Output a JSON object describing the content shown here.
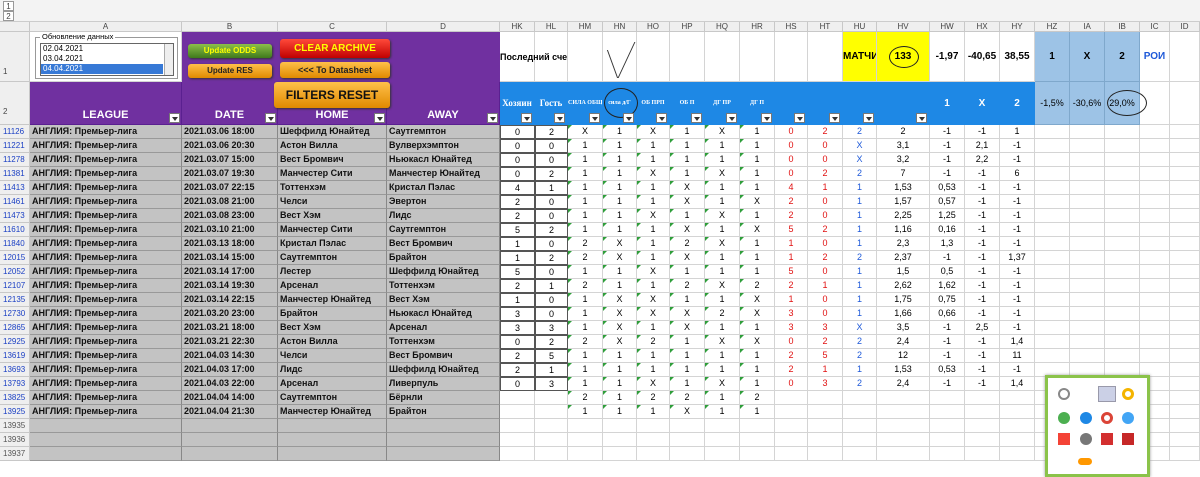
{
  "outline_levels": [
    "1",
    "2"
  ],
  "columns": [
    "A",
    "B",
    "C",
    "D",
    "HK",
    "HL",
    "HM",
    "HN",
    "HO",
    "HP",
    "HQ",
    "HR",
    "HS",
    "HT",
    "HU",
    "HV",
    "HW",
    "HX",
    "HY",
    "HZ",
    "IA",
    "IB",
    "IC",
    "ID"
  ],
  "controls": {
    "list_title": "Обновление данных",
    "list_items": [
      "02.04.2021",
      "03.04.2021",
      "04.04.2021"
    ],
    "buttons": {
      "update_odds": "Update ODDS",
      "update_res": "Update RES",
      "clear_archive": "CLEAR ARCHIVE",
      "to_datasheet": "<<< To Datasheet",
      "filters_reset": "FILTERS RESET"
    }
  },
  "row1": {
    "label": "1",
    "last_score": "Последний счет",
    "matches_label": "МАТЧИ",
    "matches": "133",
    "totals": [
      "-1,97",
      "-40,65",
      "38,55"
    ],
    "outcomes": [
      "1",
      "X",
      "2"
    ],
    "roi": "РОИ"
  },
  "row2": {
    "label": "2",
    "headers": [
      "LEAGUE",
      "DATE",
      "HOME",
      "AWAY"
    ],
    "score_headers": [
      "Хозяин",
      "Гость"
    ],
    "pick_headers": [
      "СИЛА ОБЩ",
      "сила д/Г",
      "ОБ ПРП",
      "ОБ П",
      "ДГ ПР",
      "ДГ П"
    ],
    "odds_headers": [
      "1",
      "X",
      "2"
    ],
    "roi_values": [
      "-1,5%",
      "-30,6%",
      "29,0%"
    ]
  },
  "rows": [
    {
      "id": "11126",
      "league": "АНГЛИЯ: Премьер-лига",
      "date": "2021.03.06 18:00",
      "home": "Шеффилд Юнайтед",
      "away": "Саутгемптон",
      "score": [
        "0",
        "2"
      ],
      "picks": [
        "X",
        "1",
        "X",
        "1",
        "X",
        "1",
        "0",
        "2",
        "2"
      ],
      "odds": [
        "2",
        "-1",
        "-1",
        "1"
      ]
    },
    {
      "id": "11221",
      "league": "АНГЛИЯ: Премьер-лига",
      "date": "2021.03.06 20:30",
      "home": "Астон Вилла",
      "away": "Вулверхэмптон",
      "score": [
        "0",
        "0"
      ],
      "picks": [
        "1",
        "1",
        "1",
        "1",
        "1",
        "1",
        "0",
        "0",
        "X"
      ],
      "odds": [
        "3,1",
        "-1",
        "2,1",
        "-1"
      ]
    },
    {
      "id": "11278",
      "league": "АНГЛИЯ: Премьер-лига",
      "date": "2021.03.07 15:00",
      "home": "Вест Бромвич",
      "away": "Ньюкасл Юнайтед",
      "score": [
        "0",
        "0"
      ],
      "picks": [
        "1",
        "1",
        "1",
        "1",
        "1",
        "1",
        "0",
        "0",
        "X"
      ],
      "odds": [
        "3,2",
        "-1",
        "2,2",
        "-1"
      ]
    },
    {
      "id": "11381",
      "league": "АНГЛИЯ: Премьер-лига",
      "date": "2021.03.07 19:30",
      "home": "Манчестер Сити",
      "away": "Манчестер Юнайтед",
      "score": [
        "0",
        "2"
      ],
      "picks": [
        "1",
        "1",
        "X",
        "1",
        "X",
        "1",
        "0",
        "2",
        "2"
      ],
      "odds": [
        "7",
        "-1",
        "-1",
        "6"
      ]
    },
    {
      "id": "11413",
      "league": "АНГЛИЯ: Премьер-лига",
      "date": "2021.03.07 22:15",
      "home": "Тоттенхэм",
      "away": "Кристал Пэлас",
      "score": [
        "4",
        "1"
      ],
      "picks": [
        "1",
        "1",
        "1",
        "X",
        "1",
        "1",
        "4",
        "1",
        "1"
      ],
      "odds": [
        "1,53",
        "0,53",
        "-1",
        "-1"
      ]
    },
    {
      "id": "11461",
      "league": "АНГЛИЯ: Премьер-лига",
      "date": "2021.03.08 21:00",
      "home": "Челси",
      "away": "Эвертон",
      "score": [
        "2",
        "0"
      ],
      "picks": [
        "1",
        "1",
        "1",
        "X",
        "1",
        "X",
        "2",
        "0",
        "1"
      ],
      "odds": [
        "1,57",
        "0,57",
        "-1",
        "-1"
      ]
    },
    {
      "id": "11473",
      "league": "АНГЛИЯ: Премьер-лига",
      "date": "2021.03.08 23:00",
      "home": "Вест Хэм",
      "away": "Лидс",
      "score": [
        "2",
        "0"
      ],
      "picks": [
        "1",
        "1",
        "X",
        "1",
        "X",
        "1",
        "2",
        "0",
        "1"
      ],
      "odds": [
        "2,25",
        "1,25",
        "-1",
        "-1"
      ]
    },
    {
      "id": "11610",
      "league": "АНГЛИЯ: Премьер-лига",
      "date": "2021.03.10 21:00",
      "home": "Манчестер Сити",
      "away": "Саутгемптон",
      "score": [
        "5",
        "2"
      ],
      "picks": [
        "1",
        "1",
        "1",
        "X",
        "1",
        "X",
        "5",
        "2",
        "1"
      ],
      "odds": [
        "1,16",
        "0,16",
        "-1",
        "-1"
      ]
    },
    {
      "id": "11840",
      "league": "АНГЛИЯ: Премьер-лига",
      "date": "2021.03.13 18:00",
      "home": "Кристал Пэлас",
      "away": "Вест Бромвич",
      "score": [
        "1",
        "0"
      ],
      "picks": [
        "2",
        "X",
        "1",
        "2",
        "X",
        "1",
        "1",
        "0",
        "1"
      ],
      "odds": [
        "2,3",
        "1,3",
        "-1",
        "-1"
      ]
    },
    {
      "id": "12015",
      "league": "АНГЛИЯ: Премьер-лига",
      "date": "2021.03.14 15:00",
      "home": "Саутгемптон",
      "away": "Брайтон",
      "score": [
        "1",
        "2"
      ],
      "picks": [
        "2",
        "X",
        "1",
        "X",
        "1",
        "1",
        "1",
        "2",
        "2"
      ],
      "odds": [
        "2,37",
        "-1",
        "-1",
        "1,37"
      ]
    },
    {
      "id": "12052",
      "league": "АНГЛИЯ: Премьер-лига",
      "date": "2021.03.14 17:00",
      "home": "Лестер",
      "away": "Шеффилд Юнайтед",
      "score": [
        "5",
        "0"
      ],
      "picks": [
        "1",
        "1",
        "X",
        "1",
        "1",
        "1",
        "5",
        "0",
        "1"
      ],
      "odds": [
        "1,5",
        "0,5",
        "-1",
        "-1"
      ]
    },
    {
      "id": "12107",
      "league": "АНГЛИЯ: Премьер-лига",
      "date": "2021.03.14 19:30",
      "home": "Арсенал",
      "away": "Тоттенхэм",
      "score": [
        "2",
        "1"
      ],
      "picks": [
        "2",
        "1",
        "1",
        "2",
        "X",
        "2",
        "2",
        "1",
        "1"
      ],
      "odds": [
        "2,62",
        "1,62",
        "-1",
        "-1"
      ]
    },
    {
      "id": "12135",
      "league": "АНГЛИЯ: Премьер-лига",
      "date": "2021.03.14 22:15",
      "home": "Манчестер Юнайтед",
      "away": "Вест Хэм",
      "score": [
        "1",
        "0"
      ],
      "picks": [
        "1",
        "X",
        "X",
        "1",
        "1",
        "X",
        "1",
        "0",
        "1"
      ],
      "odds": [
        "1,75",
        "0,75",
        "-1",
        "-1"
      ]
    },
    {
      "id": "12730",
      "league": "АНГЛИЯ: Премьер-лига",
      "date": "2021.03.20 23:00",
      "home": "Брайтон",
      "away": "Ньюкасл Юнайтед",
      "score": [
        "3",
        "0"
      ],
      "picks": [
        "1",
        "X",
        "X",
        "X",
        "2",
        "X",
        "3",
        "0",
        "1"
      ],
      "odds": [
        "1,66",
        "0,66",
        "-1",
        "-1"
      ]
    },
    {
      "id": "12865",
      "league": "АНГЛИЯ: Премьер-лига",
      "date": "2021.03.21 18:00",
      "home": "Вест Хэм",
      "away": "Арсенал",
      "score": [
        "3",
        "3"
      ],
      "picks": [
        "1",
        "X",
        "1",
        "X",
        "1",
        "1",
        "3",
        "3",
        "X"
      ],
      "odds": [
        "3,5",
        "-1",
        "2,5",
        "-1"
      ]
    },
    {
      "id": "12925",
      "league": "АНГЛИЯ: Премьер-лига",
      "date": "2021.03.21 22:30",
      "home": "Астон Вилла",
      "away": "Тоттенхэм",
      "score": [
        "0",
        "2"
      ],
      "picks": [
        "2",
        "X",
        "2",
        "1",
        "X",
        "X",
        "0",
        "2",
        "2"
      ],
      "odds": [
        "2,4",
        "-1",
        "-1",
        "1,4"
      ]
    },
    {
      "id": "13619",
      "league": "АНГЛИЯ: Премьер-лига",
      "date": "2021.04.03 14:30",
      "home": "Челси",
      "away": "Вест Бромвич",
      "score": [
        "2",
        "5"
      ],
      "picks": [
        "1",
        "1",
        "1",
        "1",
        "1",
        "1",
        "2",
        "5",
        "2"
      ],
      "odds": [
        "12",
        "-1",
        "-1",
        "11"
      ]
    },
    {
      "id": "13693",
      "league": "АНГЛИЯ: Премьер-лига",
      "date": "2021.04.03 17:00",
      "home": "Лидс",
      "away": "Шеффилд Юнайтед",
      "score": [
        "2",
        "1"
      ],
      "picks": [
        "1",
        "1",
        "1",
        "1",
        "1",
        "1",
        "2",
        "1",
        "1"
      ],
      "odds": [
        "1,53",
        "0,53",
        "-1",
        "-1"
      ]
    },
    {
      "id": "13793",
      "league": "АНГЛИЯ: Премьер-лига",
      "date": "2021.04.03 22:00",
      "home": "Арсенал",
      "away": "Ливерпуль",
      "score": [
        "0",
        "3"
      ],
      "picks": [
        "1",
        "1",
        "X",
        "1",
        "X",
        "1",
        "0",
        "3",
        "2"
      ],
      "odds": [
        "2,4",
        "-1",
        "-1",
        "1,4"
      ]
    },
    {
      "id": "13825",
      "league": "АНГЛИЯ: Премьер-лига",
      "date": "2021.04.04 14:00",
      "home": "Саутгемптон",
      "away": "Бёрнли",
      "picks": [
        "2",
        "1",
        "2",
        "2",
        "1",
        "2"
      ]
    },
    {
      "id": "13925",
      "league": "АНГЛИЯ: Премьер-лига",
      "date": "2021.04.04 21:30",
      "home": "Манчестер Юнайтед",
      "away": "Брайтон",
      "picks": [
        "1",
        "1",
        "1",
        "X",
        "1",
        "1"
      ]
    }
  ],
  "empty_rows": [
    "13935",
    "13936",
    "13937"
  ]
}
